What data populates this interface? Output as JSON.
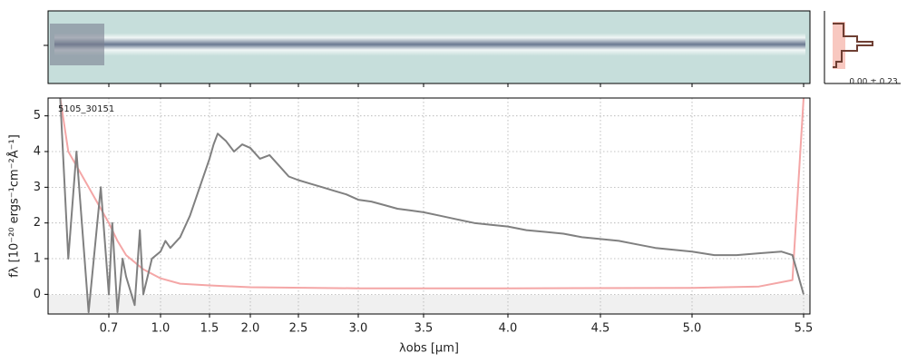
{
  "chart_data": {
    "type": "line",
    "annotation": "5105_30151",
    "histogram_label": "0.00 ± 0.23",
    "x_label": "λobs [μm]",
    "y_label": "fλ [10⁻²⁰ ergs⁻¹cm⁻²Å⁻¹]",
    "xlim": [
      0.55,
      5.53
    ],
    "ylim": [
      -0.55,
      5.5
    ],
    "xticks": [
      0.7,
      {
        "value": 1,
        "label": "1.0"
      },
      1.5,
      {
        "value": 2,
        "label": "2.0"
      },
      2.5,
      {
        "value": 3,
        "label": "3.0"
      },
      3.5,
      {
        "value": 4,
        "label": "4.0"
      },
      4.5,
      {
        "value": 5,
        "label": "5.0"
      },
      5.5
    ],
    "yticks": [
      0,
      1,
      2,
      3,
      4,
      5
    ],
    "grid": true,
    "series": [
      {
        "color": "#808080",
        "x": [
          0.58,
          0.6,
          0.62,
          0.65,
          0.68,
          0.7,
          0.72,
          0.75,
          0.78,
          0.8,
          0.85,
          0.88,
          0.9,
          0.95,
          1.0,
          1.05,
          1.1,
          1.2,
          1.3,
          1.4,
          1.5,
          1.55,
          1.6,
          1.7,
          1.8,
          1.9,
          2.0,
          2.1,
          2.2,
          2.3,
          2.4,
          2.5,
          2.6,
          2.7,
          2.8,
          2.9,
          3.0,
          3.1,
          3.2,
          3.3,
          3.4,
          3.5,
          3.6,
          3.7,
          3.8,
          3.9,
          4.0,
          4.1,
          4.2,
          4.3,
          4.4,
          4.5,
          4.6,
          4.7,
          4.8,
          4.9,
          5.0,
          5.1,
          5.2,
          5.3,
          5.4,
          5.45,
          5.5
        ],
        "values": [
          5.5,
          1,
          4,
          -0.5,
          3,
          0,
          2,
          -0.5,
          1,
          0.5,
          -0.3,
          1.8,
          0,
          1,
          1.2,
          1.5,
          1.3,
          1.6,
          2.2,
          3,
          3.8,
          4.2,
          4.5,
          4.3,
          4,
          4.2,
          4.1,
          3.8,
          3.9,
          3.6,
          3.3,
          3.2,
          3.1,
          3.0,
          2.9,
          2.8,
          2.65,
          2.6,
          2.5,
          2.4,
          2.35,
          2.3,
          2.2,
          2.1,
          2.0,
          1.95,
          1.9,
          1.8,
          1.75,
          1.7,
          1.6,
          1.55,
          1.5,
          1.4,
          1.3,
          1.25,
          1.2,
          1.1,
          1.1,
          1.15,
          1.2,
          1.1,
          0
        ]
      },
      {
        "color": "#f4a6a6",
        "x": [
          0.58,
          0.6,
          0.65,
          0.7,
          0.75,
          0.8,
          0.9,
          1.0,
          1.2,
          1.5,
          2.0,
          3.0,
          4.0,
          5.0,
          5.3,
          5.45,
          5.5
        ],
        "values": [
          5.5,
          4,
          3,
          2,
          1.5,
          1.1,
          0.7,
          0.45,
          0.3,
          0.25,
          0.2,
          0.17,
          0.17,
          0.18,
          0.22,
          0.4,
          5.5
        ]
      }
    ]
  }
}
